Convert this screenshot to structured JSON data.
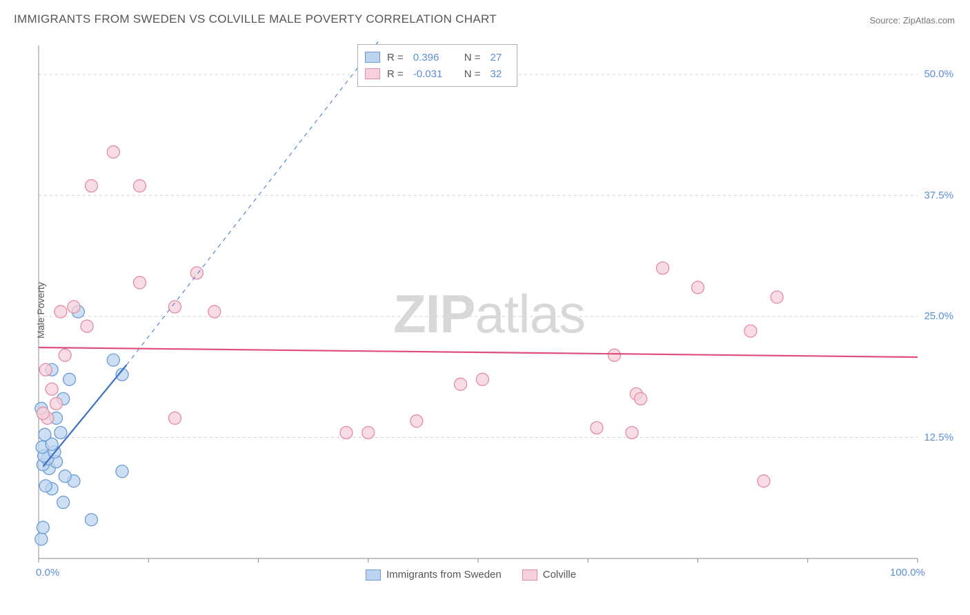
{
  "title": "IMMIGRANTS FROM SWEDEN VS COLVILLE MALE POVERTY CORRELATION CHART",
  "source_label": "Source: ZipAtlas.com",
  "ylabel": "Male Poverty",
  "watermark": {
    "zip": "ZIP",
    "atlas": "atlas"
  },
  "chart": {
    "type": "scatter",
    "xlim": [
      0,
      100
    ],
    "ylim": [
      0,
      53
    ],
    "background_color": "#ffffff",
    "grid_color": "#d0d0d0",
    "grid_dash": "4,4",
    "axis_color": "#888888",
    "x_ticks": [
      0,
      12.5,
      25,
      37.5,
      50,
      62.5,
      75,
      87.5,
      100
    ],
    "x_tick_labels": [
      "0.0%",
      "",
      "",
      "",
      "",
      "",
      "",
      "",
      "100.0%"
    ],
    "y_ticks": [
      12.5,
      25,
      37.5,
      50
    ],
    "y_tick_labels": [
      "12.5%",
      "25.0%",
      "37.5%",
      "50.0%"
    ],
    "series": [
      {
        "name": "Immigrants from Sweden",
        "color_fill": "#bcd4ee",
        "color_stroke": "#6a9bd8",
        "marker_radius": 9,
        "marker_opacity": 0.75,
        "r_value": "0.396",
        "n_value": "27",
        "trend": {
          "x1": 0.5,
          "y1": 9.5,
          "x2": 10,
          "y2": 20,
          "color": "#3a6fc7",
          "width": 2.2,
          "dash": "none",
          "ext_x1": 10,
          "ext_y1": 20,
          "ext_x2": 40,
          "ext_y2": 55,
          "ext_dash": "6,6",
          "ext_width": 1
        },
        "points": [
          [
            0.3,
            2.0
          ],
          [
            0.5,
            3.2
          ],
          [
            6.0,
            4.0
          ],
          [
            2.8,
            5.8
          ],
          [
            1.5,
            7.2
          ],
          [
            0.8,
            7.5
          ],
          [
            4.0,
            8.0
          ],
          [
            3.0,
            8.5
          ],
          [
            1.2,
            9.3
          ],
          [
            0.5,
            9.7
          ],
          [
            2.0,
            10.0
          ],
          [
            1.0,
            10.3
          ],
          [
            0.6,
            10.6
          ],
          [
            9.5,
            9.0
          ],
          [
            1.8,
            11.0
          ],
          [
            0.4,
            11.5
          ],
          [
            1.5,
            11.8
          ],
          [
            0.7,
            12.8
          ],
          [
            2.5,
            13.0
          ],
          [
            2.0,
            14.5
          ],
          [
            0.3,
            15.5
          ],
          [
            2.8,
            16.5
          ],
          [
            3.5,
            18.5
          ],
          [
            1.5,
            19.5
          ],
          [
            8.5,
            20.5
          ],
          [
            9.5,
            19.0
          ],
          [
            4.5,
            25.5
          ]
        ]
      },
      {
        "name": "Colville",
        "color_fill": "#f6d0da",
        "color_stroke": "#e38ba5",
        "marker_radius": 9,
        "marker_opacity": 0.75,
        "r_value": "-0.031",
        "n_value": "32",
        "trend": {
          "x1": 0,
          "y1": 21.8,
          "x2": 100,
          "y2": 20.8,
          "color": "#e04f7a",
          "width": 2.2,
          "dash": "none"
        },
        "points": [
          [
            1.0,
            14.5
          ],
          [
            0.5,
            15.0
          ],
          [
            2.0,
            16.0
          ],
          [
            1.5,
            17.5
          ],
          [
            0.8,
            19.5
          ],
          [
            3.0,
            21.0
          ],
          [
            5.5,
            24.0
          ],
          [
            2.5,
            25.5
          ],
          [
            4.0,
            26.0
          ],
          [
            15.5,
            26.0
          ],
          [
            20.0,
            25.5
          ],
          [
            11.5,
            28.5
          ],
          [
            18.0,
            29.5
          ],
          [
            15.5,
            14.5
          ],
          [
            6.0,
            38.5
          ],
          [
            11.5,
            38.5
          ],
          [
            8.5,
            42.0
          ],
          [
            35.0,
            13.0
          ],
          [
            37.5,
            13.0
          ],
          [
            43.0,
            14.2
          ],
          [
            48.0,
            18.0
          ],
          [
            50.5,
            18.5
          ],
          [
            63.5,
            13.5
          ],
          [
            65.5,
            21.0
          ],
          [
            68.0,
            17.0
          ],
          [
            71.0,
            30.0
          ],
          [
            75.0,
            28.0
          ],
          [
            67.5,
            13.0
          ],
          [
            68.5,
            16.5
          ],
          [
            84.0,
            27.0
          ],
          [
            81.0,
            23.5
          ],
          [
            82.5,
            8.0
          ]
        ]
      }
    ]
  },
  "stats_legend": {
    "rows": [
      {
        "swatch_fill": "#bcd4ee",
        "swatch_stroke": "#6a9bd8",
        "r_label": "R =",
        "r": "0.396",
        "n_label": "N =",
        "n": "27"
      },
      {
        "swatch_fill": "#f6d0da",
        "swatch_stroke": "#e38ba5",
        "r_label": "R =",
        "r": "-0.031",
        "n_label": "N =",
        "n": "32"
      }
    ]
  },
  "bottom_legend": [
    {
      "swatch_fill": "#bcd4ee",
      "swatch_stroke": "#6a9bd8",
      "label": "Immigrants from Sweden"
    },
    {
      "swatch_fill": "#f6d0da",
      "swatch_stroke": "#e38ba5",
      "label": "Colville"
    }
  ]
}
